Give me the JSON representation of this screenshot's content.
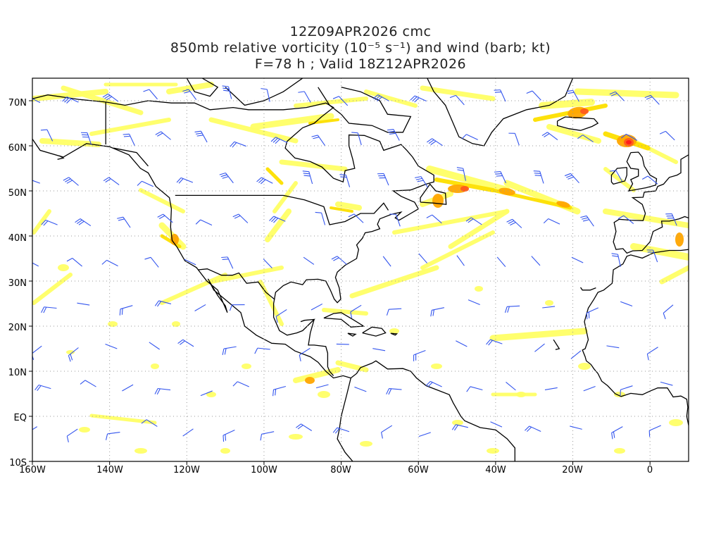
{
  "title": {
    "line1": "12Z09APR2026 cmc",
    "line2": "850mb relative vorticity (10⁻⁵ s⁻¹) and wind (barb; kt)",
    "line3": "F=78 h ; Valid 18Z12APR2026"
  },
  "axes": {
    "lon_labels": [
      "160W",
      "140W",
      "120W",
      "100W",
      "80W",
      "60W",
      "40W",
      "20W",
      "0"
    ],
    "lat_labels": [
      "70N",
      "60N",
      "50N",
      "40N",
      "30N",
      "20N",
      "10N",
      "EQ",
      "10S"
    ],
    "lon_range": [
      -160,
      10
    ],
    "lat_range": [
      -10,
      75
    ]
  },
  "colors": {
    "vort_low": "#ffff66",
    "vort_mid": "#fde000",
    "vort_orange": "#ffa500",
    "vort_high": "#ff5a1e",
    "vort_max": "#ff1a1a",
    "barbs": "#3355ee",
    "coast": "#000000",
    "grid": "#999999"
  }
}
